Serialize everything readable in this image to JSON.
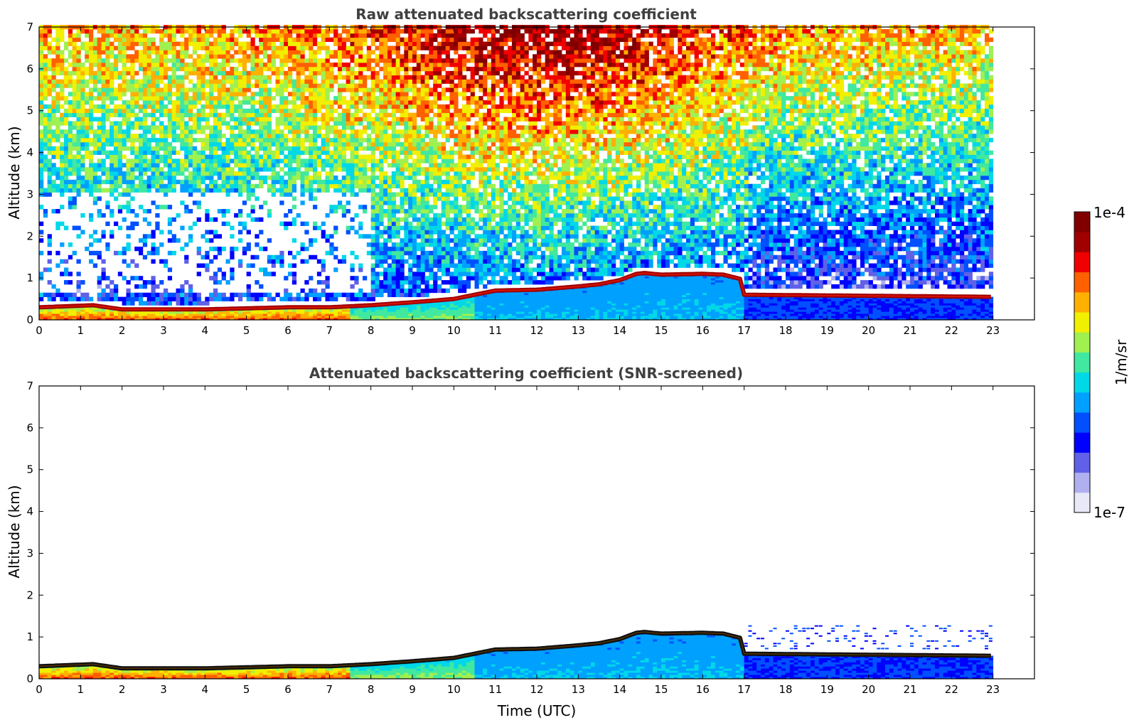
{
  "chart_data": [
    {
      "type": "heatmap",
      "title": "Raw attenuated backscattering coefficient",
      "ylabel": "Altitude (km)",
      "xlabel": "",
      "xlim": [
        0,
        24
      ],
      "ylim": [
        0,
        7
      ],
      "xticks": [
        "0",
        "1",
        "2",
        "3",
        "4",
        "5",
        "6",
        "7",
        "8",
        "9",
        "10",
        "11",
        "12",
        "13",
        "14",
        "15",
        "16",
        "17",
        "18",
        "19",
        "20",
        "21",
        "22",
        "23"
      ],
      "yticks": [
        "0",
        "1",
        "2",
        "3",
        "4",
        "5",
        "6",
        "7"
      ],
      "data_end_time": 23,
      "layer_top_km": {
        "time": [
          0,
          1.3,
          2,
          4,
          6,
          7,
          8,
          9,
          10,
          10.5,
          11,
          12,
          13,
          13.5,
          14,
          14.4,
          14.6,
          15,
          16,
          16.5,
          16.9,
          17,
          23
        ],
        "alt": [
          0.3,
          0.35,
          0.25,
          0.25,
          0.3,
          0.3,
          0.35,
          0.42,
          0.5,
          0.6,
          0.7,
          0.72,
          0.8,
          0.85,
          0.95,
          1.1,
          1.12,
          1.08,
          1.1,
          1.08,
          0.98,
          0.6,
          0.55
        ]
      },
      "noise": "speckled"
    },
    {
      "type": "heatmap",
      "title": "Attenuated backscattering coefficient (SNR-screened)",
      "ylabel": "Altitude (km)",
      "xlabel": "Time (UTC)",
      "xlim": [
        0,
        24
      ],
      "ylim": [
        0,
        7
      ],
      "xticks": [
        "0",
        "1",
        "2",
        "3",
        "4",
        "5",
        "6",
        "7",
        "8",
        "9",
        "10",
        "11",
        "12",
        "13",
        "14",
        "15",
        "16",
        "17",
        "18",
        "19",
        "20",
        "21",
        "22",
        "23"
      ],
      "yticks": [
        "0",
        "1",
        "2",
        "3",
        "4",
        "5",
        "6",
        "7"
      ],
      "data_end_time": 23,
      "layer_top_km": {
        "time": [
          0,
          1.3,
          2,
          4,
          6,
          7,
          8,
          9,
          10,
          10.5,
          11,
          12,
          13,
          13.5,
          14,
          14.4,
          14.6,
          15,
          16,
          16.5,
          16.9,
          17,
          23
        ],
        "alt": [
          0.3,
          0.35,
          0.25,
          0.25,
          0.3,
          0.3,
          0.35,
          0.42,
          0.5,
          0.6,
          0.7,
          0.72,
          0.8,
          0.85,
          0.95,
          1.1,
          1.12,
          1.08,
          1.1,
          1.08,
          0.98,
          0.6,
          0.55
        ]
      },
      "noise": "screened"
    }
  ],
  "colorbar": {
    "label": "1/m/sr",
    "max_label": "1e-4",
    "min_label": "1e-7",
    "scale": "log",
    "colormap": [
      "#e8e8f8",
      "#b0b0f0",
      "#6060e8",
      "#0000ff",
      "#0050ff",
      "#00a0ff",
      "#00d8e8",
      "#40e8a0",
      "#a0f050",
      "#f0f000",
      "#ffb000",
      "#ff6000",
      "#f00000",
      "#a00000",
      "#800000"
    ]
  }
}
